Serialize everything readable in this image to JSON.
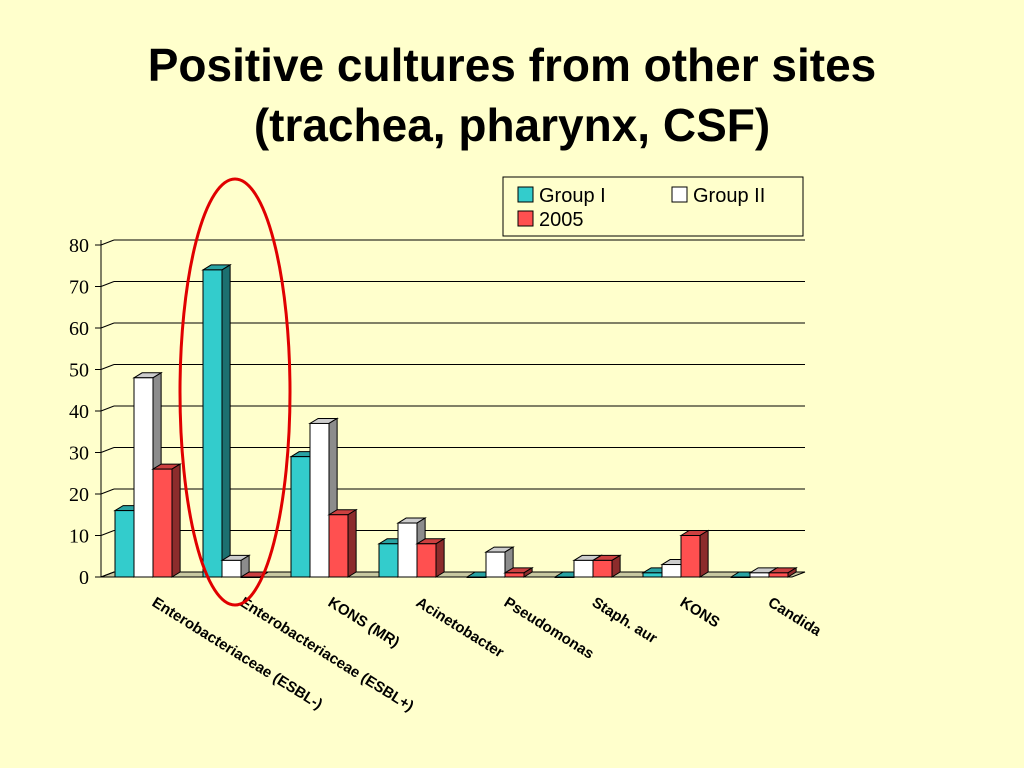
{
  "slide": {
    "title_line1": "Positive cultures from other sites",
    "title_line2": "(trachea, pharynx, CSF)"
  },
  "chart_data": {
    "type": "bar",
    "categories": [
      "Enterobacteriaceae (ESBL-)",
      "Enterobacteriaceae (ESBL+)",
      "KONS (MR)",
      "Acinetobacter",
      "Pseudomonas",
      "Staph. aur",
      "KONS",
      "Candida"
    ],
    "series": [
      {
        "name": "Group I",
        "color": "#33cccc",
        "values": [
          16,
          74,
          29,
          8,
          0,
          0,
          1,
          0
        ]
      },
      {
        "name": "Group II",
        "color": "#ffffff",
        "values": [
          48,
          4,
          37,
          13,
          6,
          4,
          3,
          1
        ]
      },
      {
        "name": "2005",
        "color": "#ff5050",
        "values": [
          26,
          0,
          15,
          8,
          1,
          4,
          10,
          1
        ]
      }
    ],
    "yticks": [
      "0",
      "10",
      "20",
      "30",
      "40",
      "50",
      "60",
      "70",
      "80"
    ],
    "ylim": [
      0,
      80
    ],
    "grid": true,
    "legend_position": "top-right",
    "annotation": "red ellipse highlighting Enterobacteriaceae (ESBL+)"
  }
}
